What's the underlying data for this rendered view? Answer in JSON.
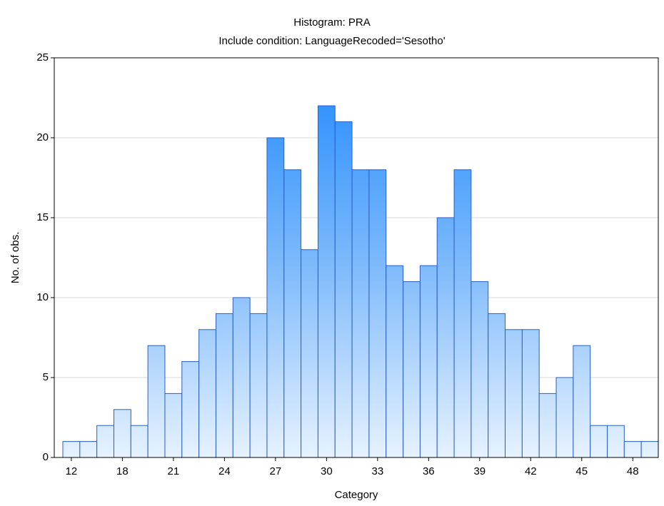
{
  "chart_data": {
    "type": "bar",
    "title": "Histogram: PRA",
    "subtitle": "Include condition: LanguageRecoded='Sesotho'",
    "x_label": "Category",
    "y_label": "No. of obs.",
    "categories": [
      "12",
      null,
      null,
      "18",
      null,
      null,
      "21",
      null,
      null,
      "24",
      null,
      null,
      "27",
      null,
      null,
      "30",
      null,
      null,
      "33",
      null,
      null,
      "36",
      null,
      null,
      "39",
      null,
      null,
      "42",
      null,
      null,
      "45",
      null,
      null,
      "48",
      null
    ],
    "values": [
      1,
      1,
      2,
      3,
      2,
      7,
      4,
      6,
      8,
      9,
      10,
      9,
      20,
      18,
      13,
      22,
      21,
      18,
      18,
      12,
      11,
      12,
      15,
      18,
      11,
      9,
      8,
      8,
      4,
      5,
      7,
      2,
      2,
      1,
      1
    ],
    "color": "#1e88ff",
    "ylim": [
      0,
      25
    ],
    "yticks": [
      0,
      5,
      10,
      15,
      20,
      25
    ],
    "grid": true
  }
}
